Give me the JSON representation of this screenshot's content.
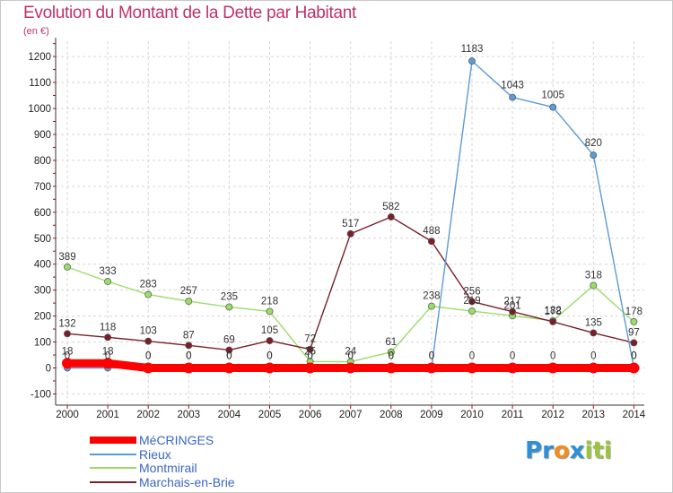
{
  "title": "Evolution du Montant de la Dette par Habitant",
  "subtitle": "(en €)",
  "logo": {
    "text": "Proxiti",
    "letters": [
      "P",
      "r",
      "o",
      "x",
      "i",
      "t",
      "i"
    ],
    "colors": [
      "#2d8fd5",
      "#2d8fd5",
      "#f28c1c",
      "#2d8fd5",
      "#9bc53d",
      "#9bc53d",
      "#9bc53d"
    ]
  },
  "chart_data": {
    "type": "line",
    "x": [
      "2000",
      "2001",
      "2002",
      "2003",
      "2004",
      "2005",
      "2006",
      "2007",
      "2008",
      "2009",
      "2010",
      "2011",
      "2012",
      "2013",
      "2014"
    ],
    "ylim": [
      -100,
      1250
    ],
    "yticks": [
      -100,
      0,
      100,
      200,
      300,
      400,
      500,
      600,
      700,
      800,
      900,
      1000,
      1100,
      1200
    ],
    "grid": true,
    "legend_position": "bottom-left",
    "series": [
      {
        "name": "MéCRINGES",
        "color": "#ff0000",
        "values": [
          18,
          18,
          0,
          0,
          0,
          0,
          0,
          0,
          0,
          0,
          0,
          0,
          0,
          0,
          0
        ],
        "labels": [
          "18",
          "18",
          "0",
          "0",
          "0",
          "0",
          "0",
          "0",
          "0",
          "0",
          "0",
          "0",
          "0",
          "0",
          "0"
        ]
      },
      {
        "name": "Rieux",
        "color": "#5b9bd5",
        "values": [
          0,
          0,
          0,
          0,
          0,
          0,
          0,
          0,
          0,
          0,
          1183,
          1043,
          1005,
          820,
          0
        ],
        "labels": [
          "0",
          "0",
          "0",
          "0",
          "0",
          "0",
          "0",
          "0",
          "0",
          "0",
          "1183",
          "1043",
          "1005",
          "820",
          "0"
        ]
      },
      {
        "name": "Montmirail",
        "color": "#99dd66",
        "values": [
          389,
          333,
          283,
          257,
          235,
          218,
          25,
          24,
          61,
          238,
          219,
          201,
          182,
          318,
          178
        ],
        "labels": [
          "389",
          "333",
          "283",
          "257",
          "235",
          "218",
          "25",
          "24",
          "61",
          "238",
          "219",
          "201",
          "182",
          "318",
          "178"
        ]
      },
      {
        "name": "Marchais-en-Brie",
        "color": "#7a1f2a",
        "values": [
          132,
          118,
          103,
          87,
          69,
          105,
          72,
          517,
          582,
          488,
          256,
          217,
          178,
          135,
          97
        ],
        "labels": [
          "132",
          "118",
          "103",
          "87",
          "69",
          "105",
          "72",
          "517",
          "582",
          "488",
          "256",
          "217",
          "178",
          "135",
          "97"
        ]
      }
    ]
  }
}
